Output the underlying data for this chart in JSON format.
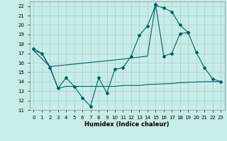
{
  "xlabel": "Humidex (Indice chaleur)",
  "xlim": [
    -0.5,
    23.5
  ],
  "ylim": [
    11,
    22.5
  ],
  "yticks": [
    11,
    12,
    13,
    14,
    15,
    16,
    17,
    18,
    19,
    20,
    21,
    22
  ],
  "xticks": [
    0,
    1,
    2,
    3,
    4,
    5,
    6,
    7,
    8,
    9,
    10,
    11,
    12,
    13,
    14,
    15,
    16,
    17,
    18,
    19,
    20,
    21,
    22,
    23
  ],
  "bg_color": "#c8ece8",
  "grid_color": "#a0d0cc",
  "line_color": "#006060",
  "line1_x": [
    0,
    1,
    2,
    3,
    4,
    5,
    6,
    7,
    8,
    9,
    10,
    11,
    12,
    13,
    14,
    15,
    16,
    17,
    18,
    19
  ],
  "line1_y": [
    17.5,
    17.0,
    15.5,
    13.3,
    14.4,
    13.5,
    12.3,
    11.4,
    14.4,
    12.8,
    15.3,
    15.5,
    16.7,
    18.9,
    19.9,
    22.1,
    21.8,
    21.4,
    20.0,
    19.2
  ],
  "line2_x": [
    0,
    2,
    10,
    12,
    14,
    15
  ],
  "line2_y": [
    17.3,
    15.6,
    16.3,
    16.5,
    16.7,
    22.2
  ],
  "line3_x": [
    0,
    1,
    2,
    3,
    4,
    5,
    10,
    11,
    12,
    13,
    14,
    17,
    18,
    21,
    22,
    23
  ],
  "line3_y": [
    17.3,
    17.0,
    15.6,
    13.3,
    13.5,
    13.5,
    13.5,
    13.6,
    13.6,
    13.6,
    13.7,
    13.8,
    13.9,
    14.0,
    14.0,
    14.0
  ],
  "line4_x": [
    15,
    16,
    17,
    18,
    19,
    20,
    21,
    22,
    23
  ],
  "line4_y": [
    22.2,
    16.7,
    17.0,
    19.1,
    19.2,
    17.1,
    15.5,
    14.3,
    14.0
  ]
}
